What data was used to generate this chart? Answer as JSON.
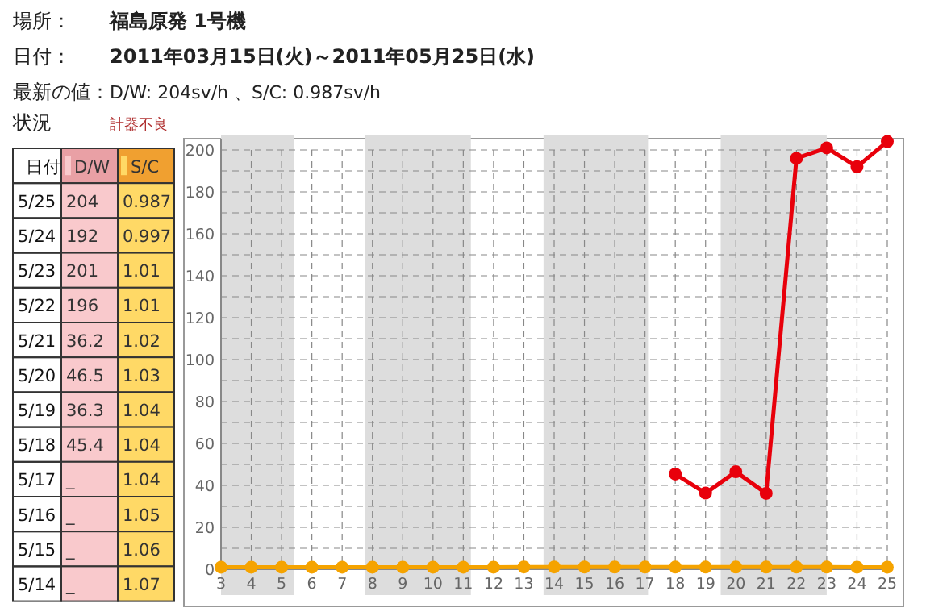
{
  "chart_data": [
    {
      "type": "line",
      "title": "福島原発 1号機",
      "subtitle": "2011年03月15日(火)～2011年05月25日(水)",
      "annotations": [
        "場所：",
        "日付：",
        "最新の値：",
        "D/W: 204sv/h 、S/C: 0.987sv/h",
        "状況",
        "計器不良"
      ],
      "x": [
        3,
        4,
        5,
        6,
        7,
        8,
        9,
        10,
        11,
        12,
        13,
        14,
        15,
        16,
        17,
        18,
        19,
        20,
        21,
        22,
        23,
        24,
        25
      ],
      "xlim": [
        3,
        25
      ],
      "xticks": [
        3,
        4,
        5,
        6,
        7,
        8,
        9,
        10,
        11,
        12,
        13,
        14,
        15,
        16,
        17,
        18,
        19,
        20,
        21,
        22,
        23,
        24,
        25
      ],
      "ylim": [
        0,
        205
      ],
      "yticks": [
        0,
        {
          "value": 10,
          "label": null
        },
        20,
        {
          "value": 30,
          "label": null
        },
        40,
        {
          "value": 50,
          "label": null
        },
        60,
        {
          "value": 70,
          "label": null
        },
        80,
        {
          "value": 90,
          "label": null
        },
        100,
        {
          "value": 110,
          "label": null
        },
        120,
        {
          "value": 130,
          "label": null
        },
        140,
        {
          "value": 150,
          "label": null
        },
        160,
        {
          "value": 170,
          "label": null
        },
        180,
        {
          "value": 190,
          "label": null
        },
        200
      ],
      "grid": true,
      "marker": "circle",
      "line_style": "solid",
      "bands": [
        {
          "axis": "x",
          "from": 3,
          "to": 5.4,
          "color": "#dddddd"
        },
        {
          "axis": "x",
          "from": 7.75,
          "to": 11.25,
          "color": "#dddddd"
        },
        {
          "axis": "x",
          "from": 13.65,
          "to": 17.1,
          "color": "#dddddd"
        },
        {
          "axis": "x",
          "from": 19.5,
          "to": 23,
          "color": "#dddddd"
        }
      ],
      "series": [
        {
          "color": "#f5a300",
          "values": [
            1,
            1,
            1,
            1,
            1,
            1,
            1,
            1,
            1,
            1,
            1.08,
            1.07,
            1.06,
            1.05,
            1.04,
            1.04,
            1.04,
            1.03,
            1.02,
            1.01,
            1.01,
            0.997,
            0.987
          ]
        },
        {
          "color": "#e8000b",
          "values": [
            null,
            null,
            null,
            null,
            null,
            null,
            null,
            null,
            null,
            null,
            null,
            null,
            null,
            null,
            null,
            45.4,
            36.3,
            46.5,
            36.2,
            196,
            201,
            192,
            204
          ]
        }
      ]
    },
    {
      "type": "other",
      "legend_title": "日付",
      "data_labels": true,
      "legend": "top",
      "annotations": [
        "_",
        "_",
        "_",
        "_"
      ],
      "categories": [
        "5/25",
        "5/24",
        "5/23",
        "5/22",
        "5/21",
        "5/20",
        "5/19",
        "5/18",
        "5/17",
        "5/16",
        "5/15",
        "5/14"
      ],
      "series": [
        {
          "name": "D/W",
          "color": "#f9c9cc",
          "values": [
            204,
            192,
            201,
            196,
            36.2,
            46.5,
            36.3,
            45.4,
            null,
            null,
            null,
            null
          ]
        },
        {
          "name": "S/C",
          "color": "#ffd966",
          "values": [
            0.987,
            0.997,
            1.01,
            1.01,
            1.02,
            1.03,
            1.04,
            1.04,
            1.04,
            1.05,
            1.06,
            1.07
          ]
        }
      ]
    }
  ]
}
